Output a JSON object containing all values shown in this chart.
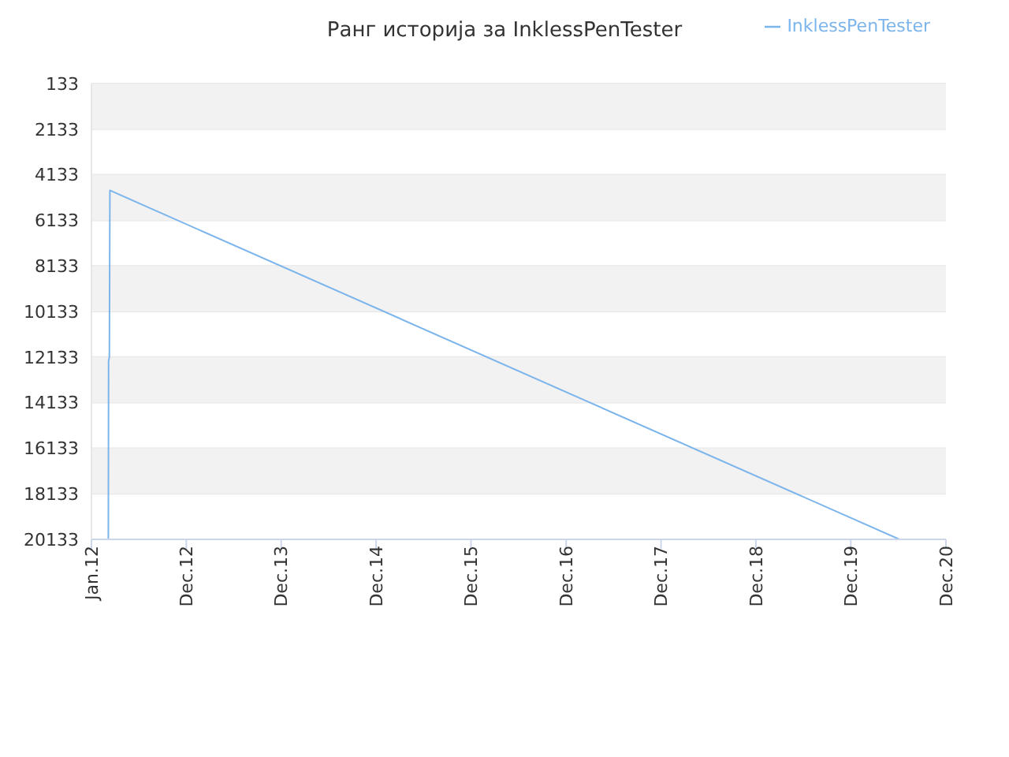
{
  "chart_data": {
    "type": "line",
    "title": "Ранг историја за InklessPenTester",
    "series": [
      {
        "name": "InklessPenTester",
        "color": "#7cb5ec",
        "x": [
          "2012-03-06",
          "2012-03-07",
          "2012-03-10",
          "2012-03-12",
          "2020-07-05"
        ],
        "values": [
          20133,
          12300,
          12133,
          4820,
          20133
        ]
      }
    ],
    "xlim": [
      "2012-01-01",
      "2020-12-31"
    ],
    "xticks": [
      {
        "value": "2012-01-01",
        "label": "Jan.12"
      },
      {
        "value": "2012-12-31",
        "label": "Dec.12"
      },
      {
        "value": "2013-12-31",
        "label": "Dec.13"
      },
      {
        "value": "2014-12-31",
        "label": "Dec.14"
      },
      {
        "value": "2015-12-31",
        "label": "Dec.15"
      },
      {
        "value": "2016-12-31",
        "label": "Dec.16"
      },
      {
        "value": "2017-12-31",
        "label": "Dec.17"
      },
      {
        "value": "2018-12-31",
        "label": "Dec.18"
      },
      {
        "value": "2019-12-31",
        "label": "Dec.19"
      },
      {
        "value": "2020-12-31",
        "label": "Dec.20"
      }
    ],
    "ylim": [
      20133,
      133
    ],
    "yticks": [
      133,
      2133,
      4133,
      6133,
      8133,
      10133,
      12133,
      14133,
      16133,
      18133,
      20133
    ],
    "bands": [
      {
        "axis": "y",
        "from": 133,
        "to": 2133,
        "color": "#f2f2f2"
      },
      {
        "axis": "y",
        "from": 4133,
        "to": 6133,
        "color": "#f2f2f2"
      },
      {
        "axis": "y",
        "from": 8133,
        "to": 10133,
        "color": "#f2f2f2"
      },
      {
        "axis": "y",
        "from": 12133,
        "to": 14133,
        "color": "#f2f2f2"
      },
      {
        "axis": "y",
        "from": 16133,
        "to": 18133,
        "color": "#f2f2f2"
      }
    ],
    "grid": "y",
    "legend": "top right",
    "marker": "none",
    "line_style": "solid"
  }
}
